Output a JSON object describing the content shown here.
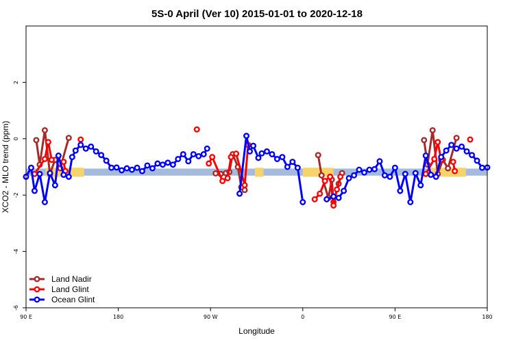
{
  "chart_data": {
    "type": "line",
    "title": "5S-0 April (Ver 10)   2015-01-01 to 2020-12-18",
    "xlabel": "Longitude",
    "ylabel": "XCO2 - MLO trend (ppm)",
    "xlim": [
      -90,
      450
    ],
    "ylim": [
      -6,
      4
    ],
    "x_ticks": [
      {
        "value": -90,
        "label": "90 E"
      },
      {
        "value": 18,
        "label": "180"
      },
      {
        "value": 126,
        "label": "90 W"
      },
      {
        "value": 234,
        "label": "0"
      },
      {
        "value": 342,
        "label": "90 E"
      },
      {
        "value": 450,
        "label": "180"
      }
    ],
    "y_ticks": [
      {
        "value": -6,
        "label": "-6"
      },
      {
        "value": -4,
        "label": "-4"
      },
      {
        "value": -2,
        "label": "-2"
      },
      {
        "value": 0,
        "label": "0"
      },
      {
        "value": 2,
        "label": "2"
      }
    ],
    "band": {
      "y_low": -1.31,
      "y_high": -1.06,
      "color": "#a4bbdb"
    },
    "highlight_bands": [
      {
        "x_low": -67,
        "x_high": -22,
        "y_low": -1.35,
        "y_high": -1.03,
        "color": "#f7d36b"
      },
      {
        "x_low": 178,
        "x_high": 188,
        "y_low": -1.35,
        "y_high": -1.03,
        "color": "#f7d36b"
      },
      {
        "x_low": 234,
        "x_high": 270,
        "y_low": -1.35,
        "y_high": -1.03,
        "color": "#f7d36b"
      },
      {
        "x_low": 380,
        "x_high": 425,
        "y_low": -1.35,
        "y_high": -1.03,
        "color": "#f7d36b"
      }
    ],
    "series": [
      {
        "name": "Land Nadir",
        "color": "#a52a2a",
        "points": [
          [
            -78,
            -0.05
          ],
          [
            -74,
            -0.92
          ],
          [
            -68,
            0.3
          ],
          [
            -62,
            -1.25
          ],
          [
            -56,
            -0.75
          ],
          [
            -50,
            -1.05
          ],
          [
            -40,
            0.03
          ],
          [
            132,
            -1.23
          ],
          [
            138,
            -1.25
          ],
          [
            144,
            -1.22
          ],
          [
            148,
            -1.18
          ],
          [
            152,
            -0.55
          ],
          [
            158,
            -1.0
          ],
          [
            162,
            -1.72
          ],
          [
            166,
            -1.82
          ],
          [
            252,
            -0.58
          ],
          [
            256,
            -1.3
          ],
          [
            264,
            -2.1
          ],
          [
            268,
            -1.45
          ],
          [
            270,
            -2.25
          ],
          [
            276,
            -1.6
          ],
          [
            280,
            -1.22
          ],
          [
            376,
            -0.05
          ],
          [
            380,
            -0.92
          ],
          [
            386,
            0.3
          ],
          [
            392,
            -1.25
          ],
          [
            398,
            -0.75
          ],
          [
            404,
            -1.05
          ],
          [
            414,
            0.03
          ]
        ]
      },
      {
        "name": "Land Glint",
        "color": "#ff0000",
        "points": [
          [
            -80,
            -1.25
          ],
          [
            -68,
            -0.72
          ],
          [
            -64,
            -0.12
          ],
          [
            -60,
            -0.75
          ],
          [
            -46,
            -0.82
          ],
          [
            -44,
            -1.15
          ],
          [
            -26,
            -0.03
          ],
          [
            110,
            0.33
          ],
          [
            124,
            -0.88
          ],
          [
            128,
            -0.65
          ],
          [
            140,
            -1.5
          ],
          [
            146,
            -1.4
          ],
          [
            150,
            -0.65
          ],
          [
            156,
            -0.53
          ],
          [
            166,
            -1.65
          ],
          [
            170,
            -0.22
          ],
          [
            248,
            -2.15
          ],
          [
            254,
            -1.95
          ],
          [
            260,
            -1.5
          ],
          [
            266,
            -1.35
          ],
          [
            270,
            -2.37
          ],
          [
            274,
            -1.8
          ],
          [
            278,
            -1.35
          ],
          [
            378,
            -1.25
          ],
          [
            388,
            -0.72
          ],
          [
            392,
            -0.12
          ],
          [
            396,
            -0.75
          ],
          [
            410,
            -0.82
          ],
          [
            412,
            -1.15
          ],
          [
            430,
            -0.03
          ]
        ]
      },
      {
        "name": "Ocean Glint",
        "color": "#0000ff",
        "points": [
          [
            -90,
            -1.35
          ],
          [
            -84,
            -1.03
          ],
          [
            -80,
            -1.85
          ],
          [
            -74,
            -1.25
          ],
          [
            -68,
            -2.25
          ],
          [
            -62,
            -1.22
          ],
          [
            -56,
            -1.65
          ],
          [
            -52,
            -0.6
          ],
          [
            -46,
            -1.28
          ],
          [
            -40,
            -1.35
          ],
          [
            -36,
            -0.65
          ],
          [
            -32,
            -0.42
          ],
          [
            -26,
            -0.22
          ],
          [
            -20,
            -0.35
          ],
          [
            -14,
            -0.28
          ],
          [
            -8,
            -0.45
          ],
          [
            -2,
            -0.58
          ],
          [
            4,
            -0.78
          ],
          [
            10,
            -1.03
          ],
          [
            16,
            -1.02
          ],
          [
            22,
            -1.12
          ],
          [
            28,
            -1.05
          ],
          [
            34,
            -1.1
          ],
          [
            40,
            -1.03
          ],
          [
            46,
            -1.15
          ],
          [
            52,
            -0.95
          ],
          [
            58,
            -1.05
          ],
          [
            64,
            -0.88
          ],
          [
            70,
            -0.92
          ],
          [
            76,
            -0.85
          ],
          [
            82,
            -0.92
          ],
          [
            88,
            -0.72
          ],
          [
            94,
            -0.55
          ],
          [
            100,
            -0.8
          ],
          [
            106,
            -0.55
          ],
          [
            112,
            -0.62
          ],
          [
            118,
            -0.55
          ],
          [
            122,
            -0.35
          ],
          [
            160,
            -1.95
          ],
          [
            168,
            0.1
          ],
          [
            172,
            -0.45
          ],
          [
            176,
            -0.25
          ],
          [
            182,
            -0.68
          ],
          [
            186,
            -0.52
          ],
          [
            192,
            -0.45
          ],
          [
            198,
            -0.55
          ],
          [
            204,
            -0.72
          ],
          [
            210,
            -0.65
          ],
          [
            216,
            -1.0
          ],
          [
            222,
            -0.82
          ],
          [
            228,
            -1.03
          ],
          [
            234,
            -2.25
          ],
          [
            262,
            -2.15
          ],
          [
            270,
            -2.05
          ],
          [
            276,
            -2.1
          ],
          [
            282,
            -1.85
          ],
          [
            288,
            -1.4
          ],
          [
            294,
            -1.3
          ],
          [
            300,
            -1.1
          ],
          [
            306,
            -1.2
          ],
          [
            312,
            -1.1
          ],
          [
            318,
            -1.08
          ],
          [
            324,
            -0.8
          ],
          [
            330,
            -1.3
          ],
          [
            336,
            -1.35
          ],
          [
            342,
            -1.03
          ],
          [
            348,
            -1.85
          ],
          [
            354,
            -1.25
          ],
          [
            360,
            -2.25
          ],
          [
            366,
            -1.22
          ],
          [
            372,
            -1.65
          ],
          [
            378,
            -0.6
          ],
          [
            384,
            -1.28
          ],
          [
            390,
            -1.35
          ],
          [
            396,
            -0.65
          ],
          [
            402,
            -0.42
          ],
          [
            408,
            -0.22
          ],
          [
            414,
            -0.35
          ],
          [
            420,
            -0.28
          ],
          [
            426,
            -0.45
          ],
          [
            432,
            -0.58
          ],
          [
            438,
            -0.78
          ],
          [
            444,
            -1.03
          ],
          [
            450,
            -1.02
          ]
        ]
      }
    ],
    "legend": {
      "position": "bottom-left",
      "entries": [
        "Land Nadir",
        "Land Glint",
        "Ocean Glint"
      ]
    }
  }
}
